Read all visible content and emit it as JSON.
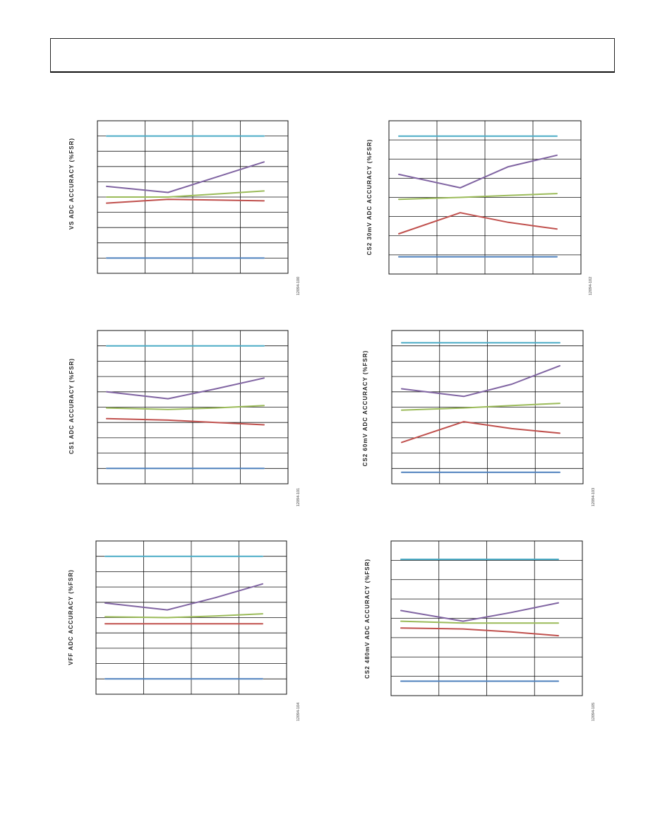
{
  "series_colors": {
    "upper_limit": "#4bacc6",
    "series_a": "#8064a2",
    "series_b": "#9bbb59",
    "series_c": "#c0504d",
    "lower_limit": "#4f81bd"
  },
  "chart_data": [
    {
      "type": "line",
      "ylabel": "VS ADC ACCURACY (%FSR)",
      "fig_id": "12094-100",
      "x": [
        0,
        1,
        2,
        3
      ],
      "rows": 10,
      "cols": 4,
      "ylim": [
        0,
        10
      ],
      "series": [
        {
          "key": "upper_limit",
          "values": [
            9,
            9,
            9,
            9
          ]
        },
        {
          "key": "series_a",
          "values": [
            5.7,
            5.3,
            6.3,
            7.3
          ]
        },
        {
          "key": "series_b",
          "values": [
            5.0,
            5.0,
            5.2,
            5.4
          ]
        },
        {
          "key": "series_c",
          "values": [
            4.6,
            4.85,
            4.8,
            4.75
          ]
        },
        {
          "key": "lower_limit",
          "values": [
            1,
            1,
            1,
            1
          ]
        }
      ]
    },
    {
      "type": "line",
      "ylabel": "CS2 30mV ADC ACCURACY (%FSR)",
      "fig_id": "12094-102",
      "x": [
        0,
        1,
        2,
        3
      ],
      "rows": 8,
      "cols": 4,
      "ylim": [
        0,
        8
      ],
      "series": [
        {
          "key": "upper_limit",
          "values": [
            7.2,
            7.2,
            7.2,
            7.2
          ]
        },
        {
          "key": "series_a",
          "values": [
            5.2,
            4.5,
            5.6,
            6.2
          ]
        },
        {
          "key": "series_b",
          "values": [
            3.9,
            4.0,
            4.1,
            4.2
          ]
        },
        {
          "key": "series_c",
          "values": [
            2.1,
            3.2,
            2.7,
            2.35
          ]
        },
        {
          "key": "lower_limit",
          "values": [
            0.9,
            0.9,
            0.9,
            0.9
          ]
        }
      ]
    },
    {
      "type": "line",
      "ylabel": "CS1 ADC ACCURACY (%FSR)",
      "fig_id": "12094-101",
      "x": [
        0,
        1,
        2,
        3
      ],
      "rows": 10,
      "cols": 4,
      "ylim": [
        0,
        10
      ],
      "series": [
        {
          "key": "upper_limit",
          "values": [
            9,
            9,
            9,
            9
          ]
        },
        {
          "key": "series_a",
          "values": [
            6.0,
            5.55,
            6.2,
            6.9
          ]
        },
        {
          "key": "series_b",
          "values": [
            4.95,
            4.85,
            4.95,
            5.1
          ]
        },
        {
          "key": "series_c",
          "values": [
            4.25,
            4.15,
            4.0,
            3.85
          ]
        },
        {
          "key": "lower_limit",
          "values": [
            1,
            1,
            1,
            1
          ]
        }
      ]
    },
    {
      "type": "line",
      "ylabel": "CS2 60mV ADC ACCURACY (%FSR)",
      "fig_id": "12094-103",
      "x": [
        0,
        1,
        2,
        3
      ],
      "rows": 10,
      "cols": 4,
      "ylim": [
        0,
        10
      ],
      "series": [
        {
          "key": "upper_limit",
          "values": [
            9.2,
            9.2,
            9.2,
            9.2
          ]
        },
        {
          "key": "series_a",
          "values": [
            6.2,
            5.7,
            6.5,
            7.7
          ]
        },
        {
          "key": "series_b",
          "values": [
            4.8,
            4.95,
            5.1,
            5.25
          ]
        },
        {
          "key": "series_c",
          "values": [
            2.7,
            4.05,
            3.6,
            3.3
          ]
        },
        {
          "key": "lower_limit",
          "values": [
            0.75,
            0.75,
            0.75,
            0.75
          ]
        }
      ]
    },
    {
      "type": "line",
      "ylabel": "VFF ADC ACCURACY (%FSR)",
      "fig_id": "12094-104",
      "x": [
        0,
        1,
        2,
        3
      ],
      "rows": 10,
      "cols": 4,
      "ylim": [
        0,
        10
      ],
      "series": [
        {
          "key": "upper_limit",
          "values": [
            9,
            9,
            9,
            9
          ]
        },
        {
          "key": "series_a",
          "values": [
            5.95,
            5.5,
            6.3,
            7.2
          ]
        },
        {
          "key": "series_b",
          "values": [
            5.05,
            5.0,
            5.1,
            5.25
          ]
        },
        {
          "key": "series_c",
          "values": [
            4.6,
            4.6,
            4.6,
            4.6
          ]
        },
        {
          "key": "lower_limit",
          "values": [
            1,
            1,
            1,
            1
          ]
        }
      ]
    },
    {
      "type": "line",
      "ylabel": "CS2 480mV ADC ACCURACY (%FSR)",
      "fig_id": "12094-105",
      "x": [
        0,
        1,
        2,
        3
      ],
      "rows": 8,
      "cols": 4,
      "ylim": [
        0,
        8
      ],
      "series": [
        {
          "key": "upper_limit",
          "values": [
            7.05,
            7.05,
            7.05,
            7.05
          ]
        },
        {
          "key": "series_a",
          "values": [
            4.4,
            3.85,
            4.3,
            4.8
          ]
        },
        {
          "key": "series_b",
          "values": [
            3.85,
            3.75,
            3.75,
            3.75
          ]
        },
        {
          "key": "series_c",
          "values": [
            3.5,
            3.45,
            3.3,
            3.1
          ]
        },
        {
          "key": "lower_limit",
          "values": [
            0.75,
            0.75,
            0.75,
            0.75
          ]
        }
      ]
    }
  ]
}
